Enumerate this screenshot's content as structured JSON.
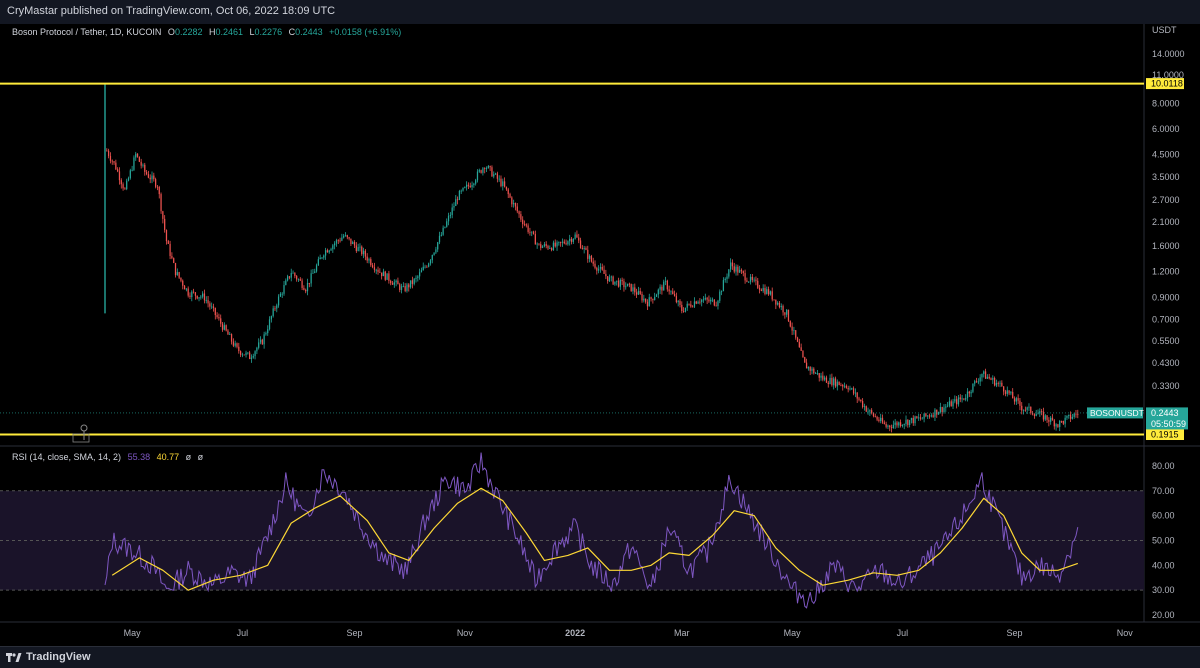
{
  "header": {
    "publish_text": "CryMastar published on TradingView.com, Oct 06, 2022 18:09 UTC"
  },
  "footer": {
    "brand": "TradingView"
  },
  "legend": {
    "symbol": "Boson Protocol / Tether, 1D, KUCOIN",
    "open_label": "O",
    "open": "0.2282",
    "high_label": "H",
    "high": "0.2461",
    "low_label": "L",
    "low": "0.2276",
    "close_label": "C",
    "close": "0.2443",
    "change": "+0.0158 (+6.91%)"
  },
  "rsi_legend": {
    "label": "RSI (14, close, SMA, 14, 2)",
    "rsi": "55.38",
    "sma": "40.77",
    "extra1": "ø",
    "extra2": "ø"
  },
  "price_axis": {
    "unit": "USDT",
    "ticks": [
      "14.0000",
      "11.0000",
      "8.0000",
      "6.0000",
      "4.5000",
      "3.5000",
      "2.7000",
      "2.1000",
      "1.6000",
      "1.2000",
      "0.9000",
      "0.7000",
      "0.5500",
      "0.4300",
      "0.3300"
    ]
  },
  "rsi_axis": {
    "ticks": [
      "80.00",
      "70.00",
      "60.00",
      "50.00",
      "40.00",
      "30.00",
      "20.00"
    ]
  },
  "time_axis": {
    "ticks": [
      "May",
      "Jul",
      "Sep",
      "Nov",
      "2022",
      "Mar",
      "May",
      "Jul",
      "Sep",
      "Nov"
    ]
  },
  "price_labels": {
    "resistance": "10.0118",
    "support": "0.1915",
    "symbol_tag": "BOSONUSDT",
    "last_price": "0.2443",
    "countdown": "05:50:59"
  },
  "colors": {
    "up": "#26a69a",
    "down": "#ef5350",
    "level": "#ffeb3b",
    "rsi": "#7e57c2",
    "rsi_ma": "#fdd835",
    "rsi_band": "#1a1329"
  },
  "chart_data": [
    {
      "type": "candlestick",
      "title": "Boson Protocol / Tether, 1D, KUCOIN",
      "scale": "log",
      "ylim": [
        0.18,
        16
      ],
      "x_range": [
        "2021-04-16",
        "2022-10-31"
      ],
      "x_ticks": [
        "May",
        "Jul",
        "Sep",
        "Nov",
        "2022",
        "Mar",
        "May",
        "Jul",
        "Sep",
        "Nov"
      ],
      "horizontal_levels": [
        10.0118,
        0.1915
      ],
      "last": 0.2443,
      "path": [
        [
          "2021-04-16",
          1.1
        ],
        [
          "2021-04-17",
          4.7
        ],
        [
          "2021-04-22",
          3.9
        ],
        [
          "2021-04-27",
          3.0
        ],
        [
          "2021-05-03",
          4.5
        ],
        [
          "2021-05-08",
          3.7
        ],
        [
          "2021-05-15",
          3.2
        ],
        [
          "2021-05-20",
          1.7
        ],
        [
          "2021-05-25",
          1.2
        ],
        [
          "2021-06-01",
          0.95
        ],
        [
          "2021-06-10",
          0.9
        ],
        [
          "2021-06-20",
          0.65
        ],
        [
          "2021-06-28",
          0.5
        ],
        [
          "2021-07-05",
          0.46
        ],
        [
          "2021-07-12",
          0.55
        ],
        [
          "2021-07-20",
          0.85
        ],
        [
          "2021-07-28",
          1.2
        ],
        [
          "2021-08-05",
          1.0
        ],
        [
          "2021-08-15",
          1.5
        ],
        [
          "2021-08-26",
          1.8
        ],
        [
          "2021-09-05",
          1.5
        ],
        [
          "2021-09-15",
          1.2
        ],
        [
          "2021-09-28",
          0.98
        ],
        [
          "2021-10-05",
          1.1
        ],
        [
          "2021-10-12",
          1.35
        ],
        [
          "2021-10-20",
          1.9
        ],
        [
          "2021-10-28",
          2.8
        ],
        [
          "2021-11-05",
          3.3
        ],
        [
          "2021-11-12",
          4.0
        ],
        [
          "2021-11-22",
          3.2
        ],
        [
          "2021-12-02",
          2.2
        ],
        [
          "2021-12-12",
          1.6
        ],
        [
          "2021-12-22",
          1.6
        ],
        [
          "2022-01-01",
          1.8
        ],
        [
          "2022-01-10",
          1.35
        ],
        [
          "2022-01-20",
          1.1
        ],
        [
          "2022-02-01",
          1.0
        ],
        [
          "2022-02-10",
          0.85
        ],
        [
          "2022-02-20",
          1.05
        ],
        [
          "2022-03-01",
          0.78
        ],
        [
          "2022-03-10",
          0.88
        ],
        [
          "2022-03-20",
          0.85
        ],
        [
          "2022-03-28",
          1.3
        ],
        [
          "2022-04-07",
          1.1
        ],
        [
          "2022-04-18",
          0.95
        ],
        [
          "2022-04-28",
          0.75
        ],
        [
          "2022-05-08",
          0.42
        ],
        [
          "2022-05-18",
          0.36
        ],
        [
          "2022-06-01",
          0.33
        ],
        [
          "2022-06-12",
          0.25
        ],
        [
          "2022-06-22",
          0.21
        ],
        [
          "2022-07-01",
          0.22
        ],
        [
          "2022-07-12",
          0.23
        ],
        [
          "2022-07-24",
          0.26
        ],
        [
          "2022-08-04",
          0.29
        ],
        [
          "2022-08-14",
          0.38
        ],
        [
          "2022-08-25",
          0.33
        ],
        [
          "2022-09-05",
          0.26
        ],
        [
          "2022-09-15",
          0.24
        ],
        [
          "2022-09-25",
          0.215
        ],
        [
          "2022-10-06",
          0.2443
        ]
      ]
    },
    {
      "type": "line",
      "title": "RSI (14, close, SMA, 14, 2)",
      "ylim": [
        18,
        84
      ],
      "guides": [
        70,
        50,
        30
      ],
      "series": [
        {
          "name": "RSI",
          "values": [
            [
              "2021-04-16",
              30
            ],
            [
              "2021-04-20",
              50
            ],
            [
              "2021-05-01",
              46
            ],
            [
              "2021-05-12",
              40
            ],
            [
              "2021-05-20",
              30
            ],
            [
              "2021-06-01",
              38
            ],
            [
              "2021-06-15",
              32
            ],
            [
              "2021-06-25",
              37
            ],
            [
              "2021-07-05",
              34
            ],
            [
              "2021-07-15",
              52
            ],
            [
              "2021-07-25",
              73
            ],
            [
              "2021-08-05",
              58
            ],
            [
              "2021-08-15",
              78
            ],
            [
              "2021-08-26",
              70
            ],
            [
              "2021-09-05",
              56
            ],
            [
              "2021-09-18",
              42
            ],
            [
              "2021-09-30",
              38
            ],
            [
              "2021-10-10",
              58
            ],
            [
              "2021-10-22",
              75
            ],
            [
              "2021-11-02",
              70
            ],
            [
              "2021-11-10",
              82
            ],
            [
              "2021-11-20",
              66
            ],
            [
              "2021-12-01",
              50
            ],
            [
              "2021-12-10",
              34
            ],
            [
              "2021-12-22",
              48
            ],
            [
              "2022-01-01",
              55
            ],
            [
              "2022-01-10",
              40
            ],
            [
              "2022-01-22",
              32
            ],
            [
              "2022-02-01",
              48
            ],
            [
              "2022-02-12",
              30
            ],
            [
              "2022-02-22",
              55
            ],
            [
              "2022-03-05",
              38
            ],
            [
              "2022-03-15",
              45
            ],
            [
              "2022-03-28",
              75
            ],
            [
              "2022-04-08",
              60
            ],
            [
              "2022-04-20",
              45
            ],
            [
              "2022-05-01",
              30
            ],
            [
              "2022-05-12",
              26
            ],
            [
              "2022-05-24",
              40
            ],
            [
              "2022-06-05",
              30
            ],
            [
              "2022-06-18",
              38
            ],
            [
              "2022-06-30",
              32
            ],
            [
              "2022-07-12",
              40
            ],
            [
              "2022-07-24",
              48
            ],
            [
              "2022-08-05",
              62
            ],
            [
              "2022-08-14",
              75
            ],
            [
              "2022-08-25",
              55
            ],
            [
              "2022-09-05",
              35
            ],
            [
              "2022-09-15",
              40
            ],
            [
              "2022-09-25",
              36
            ],
            [
              "2022-10-01",
              45
            ],
            [
              "2022-10-06",
              55.38
            ]
          ]
        },
        {
          "name": "RSI-based MA",
          "values": [
            [
              "2021-04-20",
              36
            ],
            [
              "2021-05-05",
              43
            ],
            [
              "2021-05-18",
              38
            ],
            [
              "2021-06-01",
              30
            ],
            [
              "2021-06-15",
              34
            ],
            [
              "2021-06-30",
              36
            ],
            [
              "2021-07-15",
              40
            ],
            [
              "2021-07-28",
              57
            ],
            [
              "2021-08-10",
              63
            ],
            [
              "2021-08-24",
              68
            ],
            [
              "2021-09-08",
              58
            ],
            [
              "2021-09-20",
              45
            ],
            [
              "2021-10-01",
              42
            ],
            [
              "2021-10-15",
              55
            ],
            [
              "2021-10-28",
              65
            ],
            [
              "2021-11-10",
              71
            ],
            [
              "2021-11-22",
              66
            ],
            [
              "2021-12-05",
              53
            ],
            [
              "2021-12-15",
              42
            ],
            [
              "2021-12-28",
              44
            ],
            [
              "2022-01-08",
              47
            ],
            [
              "2022-01-20",
              38
            ],
            [
              "2022-02-01",
              38
            ],
            [
              "2022-02-12",
              40
            ],
            [
              "2022-02-22",
              45
            ],
            [
              "2022-03-05",
              44
            ],
            [
              "2022-03-18",
              52
            ],
            [
              "2022-03-30",
              62
            ],
            [
              "2022-04-10",
              60
            ],
            [
              "2022-04-22",
              47
            ],
            [
              "2022-05-05",
              38
            ],
            [
              "2022-05-18",
              32
            ],
            [
              "2022-06-01",
              34
            ],
            [
              "2022-06-15",
              37
            ],
            [
              "2022-06-28",
              36
            ],
            [
              "2022-07-10",
              38
            ],
            [
              "2022-07-22",
              45
            ],
            [
              "2022-08-03",
              55
            ],
            [
              "2022-08-15",
              67
            ],
            [
              "2022-08-26",
              60
            ],
            [
              "2022-09-05",
              45
            ],
            [
              "2022-09-15",
              38
            ],
            [
              "2022-09-25",
              38
            ],
            [
              "2022-10-06",
              40.77
            ]
          ]
        }
      ]
    }
  ]
}
